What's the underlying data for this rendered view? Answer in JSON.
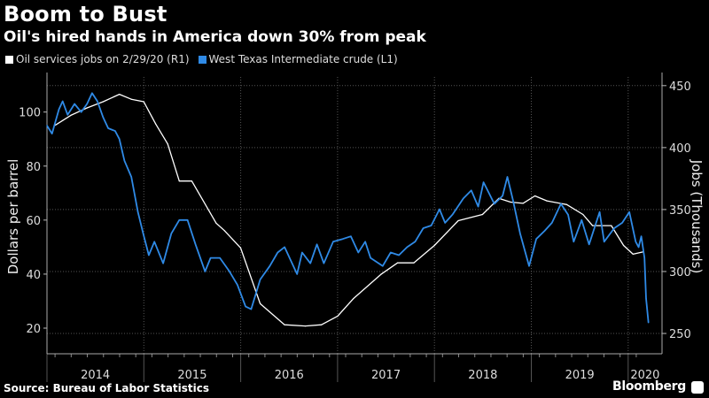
{
  "chart_data": {
    "type": "line",
    "title": "Boom to Bust",
    "subtitle": "Oil's hired hands in America down 30% from peak",
    "source": "Source: Bureau of Labor Statistics",
    "logo": "Bloomberg",
    "ylabel_left": "Dollars per barrel",
    "ylabel_right": "Jobs (Thousands)",
    "ylim_left": [
      10.5,
      113
    ],
    "ylim_right": [
      233.6,
      457
    ],
    "xlim": [
      "2014-01-01",
      "2020-03-25"
    ],
    "left_ticks": [
      20,
      40,
      60,
      80,
      100
    ],
    "right_ticks": [
      250,
      300,
      350,
      400,
      450
    ],
    "x_tick_labels": [
      "2014",
      "2015",
      "2016",
      "2017",
      "2018",
      "2019",
      "2020"
    ],
    "grid": true,
    "legend_position": "top-left",
    "series": [
      {
        "name": "Oil services jobs on 2/29/20 (R1)",
        "axis": "right",
        "color": "#ffffff",
        "points": [
          [
            "2014-02-01",
            418
          ],
          [
            "2014-04-01",
            426
          ],
          [
            "2014-06-01",
            432
          ],
          [
            "2014-08-01",
            437
          ],
          [
            "2014-10-01",
            443
          ],
          [
            "2014-11-15",
            439
          ],
          [
            "2015-01-01",
            437
          ],
          [
            "2015-02-15",
            419
          ],
          [
            "2015-04-01",
            403
          ],
          [
            "2015-05-15",
            373
          ],
          [
            "2015-07-01",
            373
          ],
          [
            "2015-10-01",
            339
          ],
          [
            "2015-11-01",
            333
          ],
          [
            "2016-01-01",
            319
          ],
          [
            "2016-03-15",
            274
          ],
          [
            "2016-06-15",
            257
          ],
          [
            "2016-09-01",
            256
          ],
          [
            "2016-11-01",
            257
          ],
          [
            "2017-01-01",
            264
          ],
          [
            "2017-03-01",
            278
          ],
          [
            "2017-06-15",
            298
          ],
          [
            "2017-08-15",
            307
          ],
          [
            "2017-10-15",
            307
          ],
          [
            "2018-01-01",
            321
          ],
          [
            "2018-04-01",
            341
          ],
          [
            "2018-07-01",
            346
          ],
          [
            "2018-09-01",
            359
          ],
          [
            "2018-10-15",
            356
          ],
          [
            "2018-12-01",
            355
          ],
          [
            "2019-01-15",
            361
          ],
          [
            "2019-03-01",
            357
          ],
          [
            "2019-05-15",
            354
          ],
          [
            "2019-07-15",
            346
          ],
          [
            "2019-08-20",
            337
          ],
          [
            "2019-10-30",
            337
          ],
          [
            "2019-12-15",
            321
          ],
          [
            "2020-01-20",
            314
          ],
          [
            "2020-02-29",
            316
          ]
        ]
      },
      {
        "name": "West Texas Intermediate crude (L1)",
        "axis": "left",
        "color": "#2f8ae6",
        "points": [
          [
            "2014-01-01",
            95
          ],
          [
            "2014-01-20",
            92
          ],
          [
            "2014-02-15",
            101
          ],
          [
            "2014-03-01",
            104
          ],
          [
            "2014-03-20",
            99
          ],
          [
            "2014-04-15",
            103
          ],
          [
            "2014-05-10",
            100
          ],
          [
            "2014-06-01",
            103
          ],
          [
            "2014-06-20",
            107
          ],
          [
            "2014-07-10",
            104
          ],
          [
            "2014-08-01",
            98
          ],
          [
            "2014-08-20",
            94
          ],
          [
            "2014-09-15",
            93
          ],
          [
            "2014-10-01",
            90
          ],
          [
            "2014-10-20",
            82
          ],
          [
            "2014-11-15",
            76
          ],
          [
            "2014-12-10",
            63
          ],
          [
            "2014-12-30",
            55
          ],
          [
            "2015-01-20",
            47
          ],
          [
            "2015-02-10",
            52
          ],
          [
            "2015-03-15",
            44
          ],
          [
            "2015-04-15",
            55
          ],
          [
            "2015-05-15",
            60
          ],
          [
            "2015-06-15",
            60
          ],
          [
            "2015-07-15",
            51
          ],
          [
            "2015-08-20",
            41
          ],
          [
            "2015-09-10",
            46
          ],
          [
            "2015-10-15",
            46
          ],
          [
            "2015-11-20",
            41
          ],
          [
            "2015-12-20",
            36
          ],
          [
            "2016-01-20",
            28
          ],
          [
            "2016-02-10",
            27
          ],
          [
            "2016-03-15",
            38
          ],
          [
            "2016-04-20",
            43
          ],
          [
            "2016-05-20",
            48
          ],
          [
            "2016-06-15",
            50
          ],
          [
            "2016-08-01",
            40
          ],
          [
            "2016-08-20",
            48
          ],
          [
            "2016-09-20",
            44
          ],
          [
            "2016-10-15",
            51
          ],
          [
            "2016-11-10",
            44
          ],
          [
            "2016-12-15",
            52
          ],
          [
            "2017-01-20",
            53
          ],
          [
            "2017-02-20",
            54
          ],
          [
            "2017-03-20",
            48
          ],
          [
            "2017-04-15",
            52
          ],
          [
            "2017-05-05",
            46
          ],
          [
            "2017-06-20",
            43
          ],
          [
            "2017-07-20",
            48
          ],
          [
            "2017-08-20",
            47
          ],
          [
            "2017-09-20",
            50
          ],
          [
            "2017-10-20",
            52
          ],
          [
            "2017-11-20",
            57
          ],
          [
            "2017-12-20",
            58
          ],
          [
            "2018-01-20",
            64
          ],
          [
            "2018-02-10",
            59
          ],
          [
            "2018-03-10",
            62
          ],
          [
            "2018-04-20",
            68
          ],
          [
            "2018-05-20",
            71
          ],
          [
            "2018-06-15",
            65
          ],
          [
            "2018-07-05",
            74
          ],
          [
            "2018-08-15",
            66
          ],
          [
            "2018-09-15",
            69
          ],
          [
            "2018-10-03",
            76
          ],
          [
            "2018-10-25",
            67
          ],
          [
            "2018-11-20",
            55
          ],
          [
            "2018-12-24",
            43
          ],
          [
            "2019-01-20",
            53
          ],
          [
            "2019-02-20",
            56
          ],
          [
            "2019-03-20",
            59
          ],
          [
            "2019-04-23",
            66
          ],
          [
            "2019-05-20",
            62
          ],
          [
            "2019-06-10",
            52
          ],
          [
            "2019-07-10",
            60
          ],
          [
            "2019-08-07",
            51
          ],
          [
            "2019-09-16",
            63
          ],
          [
            "2019-10-03",
            52
          ],
          [
            "2019-11-10",
            57
          ],
          [
            "2019-12-10",
            59
          ],
          [
            "2020-01-06",
            63
          ],
          [
            "2020-01-30",
            52
          ],
          [
            "2020-02-10",
            50
          ],
          [
            "2020-02-20",
            54
          ],
          [
            "2020-03-03",
            46
          ],
          [
            "2020-03-09",
            31
          ],
          [
            "2020-03-18",
            22
          ]
        ]
      }
    ]
  }
}
